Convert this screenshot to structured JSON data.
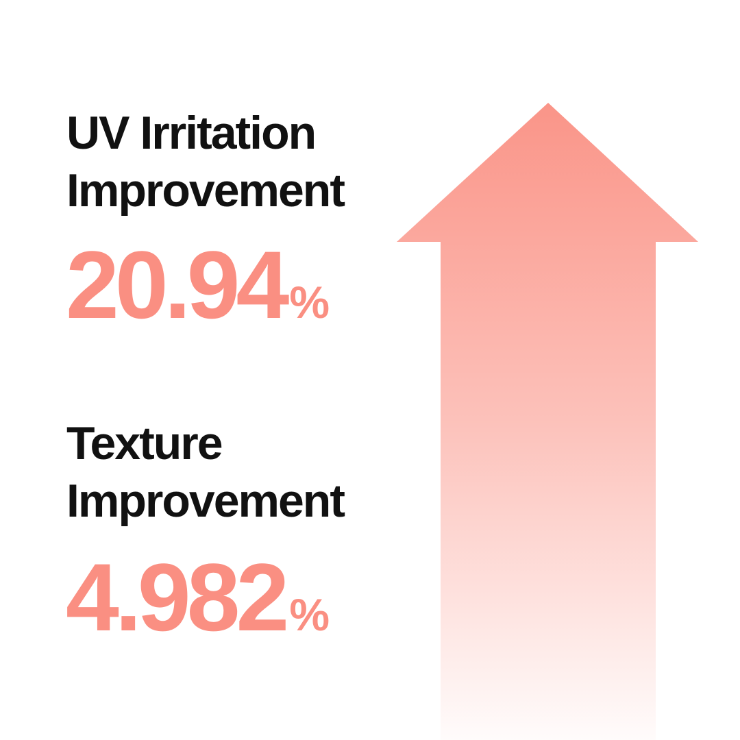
{
  "colors": {
    "accent": "#FA8F82",
    "text": "#111111"
  },
  "metrics": [
    {
      "label_line1": "UV Irritation",
      "label_line2": "Improvement",
      "value": "20.94",
      "unit": "%"
    },
    {
      "label_line1": "Texture",
      "label_line2": "Improvement",
      "value": "4.982",
      "unit": "%"
    }
  ],
  "arrow": {
    "icon": "up-arrow-icon",
    "direction": "up"
  }
}
